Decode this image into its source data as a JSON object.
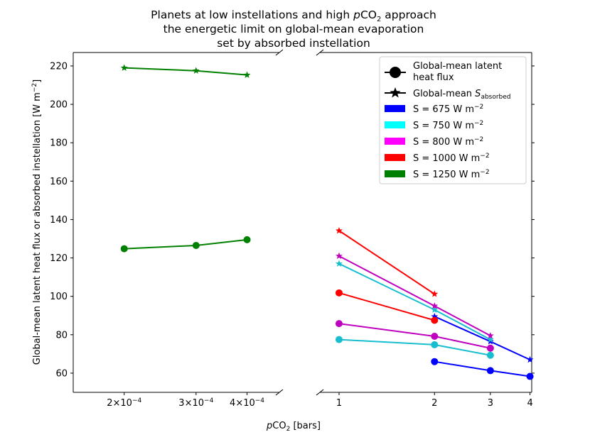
{
  "chart_data": {
    "type": "line",
    "title": {
      "line1_pre": "Planets at low instellations and high ",
      "line1_italic": "p",
      "line1_co": "CO",
      "line1_sub": "2",
      "line1_post": " approach",
      "line2": "the energetic limit on global-mean evaporation",
      "line3": "set by absorbed instellation"
    },
    "xlabel": {
      "italic": "p",
      "co": "CO",
      "sub": "2",
      "post": " [bars]"
    },
    "ylabel": {
      "pre": "Global-mean latent heat flux or absorbed instellation [W m",
      "sup": "−2",
      "post": "]"
    },
    "ylim": [
      50,
      227
    ],
    "yticks": [
      60,
      80,
      100,
      120,
      140,
      160,
      180,
      200,
      220
    ],
    "left_panel": {
      "xscale": "log",
      "xlim": [
        0.00015,
        0.00048
      ],
      "xticks": [
        {
          "value": 0.0002,
          "mant": "2",
          "times": "×",
          "base": "10",
          "exp": "−4"
        },
        {
          "value": 0.0003,
          "mant": "3",
          "times": "×",
          "base": "10",
          "exp": "−4"
        },
        {
          "value": 0.0004,
          "mant": "4",
          "times": "×",
          "base": "10",
          "exp": "−4"
        }
      ]
    },
    "right_panel": {
      "xscale": "log",
      "xlim": [
        0.87,
        4.05
      ],
      "xticks": [
        {
          "value": 1,
          "label": "1"
        },
        {
          "value": 2,
          "label": "2"
        },
        {
          "value": 3,
          "label": "3"
        },
        {
          "value": 4,
          "label": "4"
        }
      ]
    },
    "series": [
      {
        "name": "S = 675 W m−2",
        "instellation": 675,
        "color": "#0000ff",
        "latent_heat_flux": [
          [
            2,
            66
          ],
          [
            3,
            61.3
          ],
          [
            4,
            58.3
          ]
        ],
        "absorbed_instellation": [
          [
            2,
            89.5
          ],
          [
            3,
            76.5
          ],
          [
            4,
            67
          ]
        ]
      },
      {
        "name": "S = 750 W m−2",
        "instellation": 750,
        "color": "#17becf",
        "latent_heat_flux": [
          [
            1,
            77.5
          ],
          [
            2,
            74.8
          ],
          [
            3,
            69.3
          ]
        ],
        "absorbed_instellation": [
          [
            1,
            117
          ],
          [
            2,
            93
          ],
          [
            3,
            77.5
          ]
        ]
      },
      {
        "name": "S = 800 W m−2",
        "instellation": 800,
        "color": "#bf00bf",
        "latent_heat_flux": [
          [
            1,
            85.8
          ],
          [
            2,
            79.2
          ],
          [
            3,
            73
          ]
        ],
        "absorbed_instellation": [
          [
            1,
            121
          ],
          [
            2,
            95
          ],
          [
            3,
            79.5
          ]
        ]
      },
      {
        "name": "S = 1000 W m−2",
        "instellation": 1000,
        "color": "#ff0000",
        "latent_heat_flux": [
          [
            1,
            101.8
          ],
          [
            2,
            87.5
          ]
        ],
        "absorbed_instellation": [
          [
            1,
            134.2
          ],
          [
            2,
            101.2
          ]
        ]
      },
      {
        "name": "S = 1250 W m−2",
        "instellation": 1250,
        "color": "#008000",
        "latent_heat_flux": [
          [
            0.0002,
            124.8
          ],
          [
            0.0003,
            126.5
          ],
          [
            0.0004,
            129.5
          ]
        ],
        "absorbed_instellation": [
          [
            0.0002,
            219
          ],
          [
            0.0003,
            217.5
          ],
          [
            0.0004,
            215.3
          ]
        ]
      }
    ],
    "legend": {
      "position": "top-right",
      "marker_entries": [
        {
          "lines": [
            "Global-mean latent",
            "heat flux"
          ]
        },
        {
          "pre": "Global-mean ",
          "italic": "S",
          "sub": "absorbed"
        }
      ],
      "color_entries": [
        {
          "pre": "S = 675 W m",
          "sup": "−2"
        },
        {
          "pre": "S = 750 W m",
          "sup": "−2"
        },
        {
          "pre": "S = 800 W m",
          "sup": "−2"
        },
        {
          "pre": "S = 1000 W m",
          "sup": "−2"
        },
        {
          "pre": "S = 1250 W m",
          "sup": "−2"
        }
      ]
    }
  }
}
